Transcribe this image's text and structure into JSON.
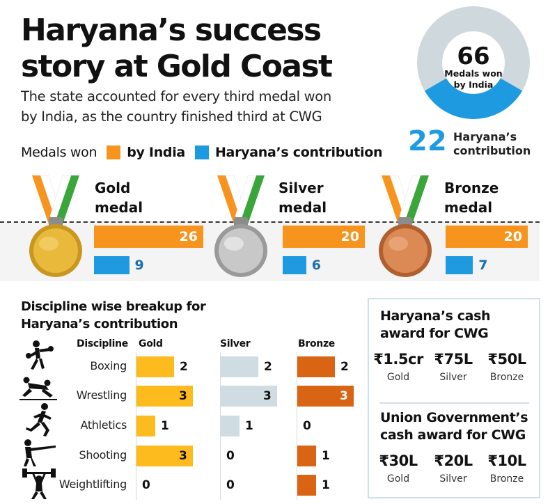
{
  "title_line1": "Haryana’s success",
  "title_line2": "story at Gold Coast",
  "subtitle_line1": "The state accounted for every third medal won",
  "subtitle_line2": "by India, as the country finished third at CWG",
  "legend": {
    "prefix": "Medals won",
    "india_label": "by India",
    "haryana_label": "Haryana’s contribution",
    "india_color": "#f7941d",
    "haryana_color": "#1e9be0"
  },
  "donut": {
    "total": "66",
    "total_label_1": "Medals won",
    "total_label_2": "by India",
    "haryana": "22",
    "haryana_label_1": "Haryana’s",
    "haryana_label_2": "contribution",
    "total_value": 66,
    "haryana_value": 22,
    "ring_color": "#cfd8dc",
    "haryana_color": "#1e9be0"
  },
  "medals": [
    {
      "title1": "Gold",
      "title2": "medal",
      "india": 26,
      "haryana": 9,
      "india_label": "26",
      "haryana_label": "9",
      "medal_color": "#e8b93a"
    },
    {
      "title1": "Silver",
      "title2": "medal",
      "india": 20,
      "haryana": 6,
      "india_label": "20",
      "haryana_label": "6",
      "medal_color": "#bdbdbd"
    },
    {
      "title1": "Bronze",
      "title2": "medal",
      "india": 20,
      "haryana": 7,
      "india_label": "20",
      "haryana_label": "7",
      "medal_color": "#d8844e"
    }
  ],
  "discipline": {
    "title_line1": "Discipline wise breakup for",
    "title_line2": "Haryana’s contribution",
    "header_discipline": "Discipline",
    "header_gold": "Gold",
    "header_silver": "Silver",
    "header_bronze": "Bronze",
    "colors": {
      "gold": "#fdbb1e",
      "silver": "#cfdde3",
      "bronze": "#d96414"
    }
  },
  "chart_data": {
    "type": "bar",
    "categories": [
      "Boxing",
      "Wrestling",
      "Athletics",
      "Shooting",
      "Weightlifting"
    ],
    "series": [
      {
        "name": "Gold",
        "values": [
          2,
          3,
          1,
          3,
          0
        ]
      },
      {
        "name": "Silver",
        "values": [
          2,
          3,
          1,
          0,
          0
        ]
      },
      {
        "name": "Bronze",
        "values": [
          2,
          3,
          0,
          1,
          1
        ]
      }
    ],
    "ylim": [
      0,
      3
    ]
  },
  "cash": {
    "haryana_title1": "Haryana’s cash",
    "haryana_title2": "award for CWG",
    "haryana_amounts": [
      "₹1.5cr",
      "₹75L",
      "₹50L"
    ],
    "union_title1": "Union Government’s",
    "union_title2": "cash award for CWG",
    "union_amounts": [
      "₹30L",
      "₹20L",
      "₹10L"
    ],
    "medal_labels": [
      "Gold",
      "Silver",
      "Bronze"
    ]
  }
}
